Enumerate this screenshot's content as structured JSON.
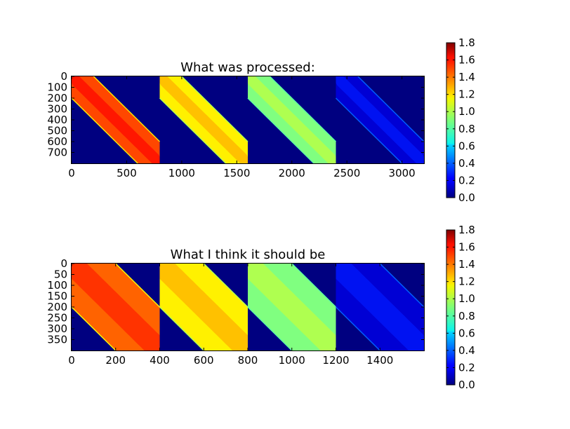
{
  "chart_data": [
    {
      "type": "heatmap",
      "title": "What was processed:",
      "xlabel": "",
      "ylabel": "",
      "xlim": [
        0,
        3200
      ],
      "ylim": [
        800,
        0
      ],
      "xticks": [
        "0",
        "500",
        "1000",
        "1500",
        "2000",
        "2500",
        "3000"
      ],
      "yticks": [
        "0",
        "100",
        "200",
        "300",
        "400",
        "500",
        "600",
        "700"
      ],
      "ytick_values": [
        0,
        100,
        200,
        300,
        400,
        500,
        600,
        700
      ],
      "xtick_values": [
        0,
        500,
        1000,
        1500,
        2000,
        2500,
        3000
      ],
      "block_width": 800,
      "band_half_width": 200,
      "band_level": [
        1.45,
        1.15,
        0.9,
        0.15
      ],
      "background_level": 0.0,
      "colorbar": {
        "label": "",
        "ticks": [
          "1.8",
          "1.6",
          "1.4",
          "1.2",
          "1.0",
          "0.8",
          "0.6",
          "0.4",
          "0.2",
          "0.0"
        ],
        "tick_values": [
          1.8,
          1.6,
          1.4,
          1.2,
          1.0,
          0.8,
          0.6,
          0.4,
          0.2,
          0.0
        ],
        "range": [
          0.0,
          1.8
        ],
        "colormap": "jet"
      }
    },
    {
      "type": "heatmap",
      "title": "What I think it should be",
      "xlabel": "",
      "ylabel": "",
      "xlim": [
        0,
        1600
      ],
      "ylim": [
        400,
        0
      ],
      "xticks": [
        "0",
        "200",
        "400",
        "600",
        "800",
        "1000",
        "1200",
        "1400"
      ],
      "yticks": [
        "0",
        "50",
        "100",
        "150",
        "200",
        "250",
        "300",
        "350"
      ],
      "ytick_values": [
        0,
        50,
        100,
        150,
        200,
        250,
        300,
        350
      ],
      "xtick_values": [
        0,
        200,
        400,
        600,
        800,
        1000,
        1200,
        1400
      ],
      "block_width": 400,
      "band_half_width": 200,
      "band_level": [
        1.4,
        1.15,
        0.9,
        0.15
      ],
      "background_level": 0.0,
      "colorbar": {
        "label": "",
        "ticks": [
          "1.8",
          "1.6",
          "1.4",
          "1.2",
          "1.0",
          "0.8",
          "0.6",
          "0.4",
          "0.2",
          "0.0"
        ],
        "tick_values": [
          1.8,
          1.6,
          1.4,
          1.2,
          1.0,
          0.8,
          0.6,
          0.4,
          0.2,
          0.0
        ],
        "range": [
          0.0,
          1.8
        ],
        "colormap": "jet"
      }
    }
  ]
}
